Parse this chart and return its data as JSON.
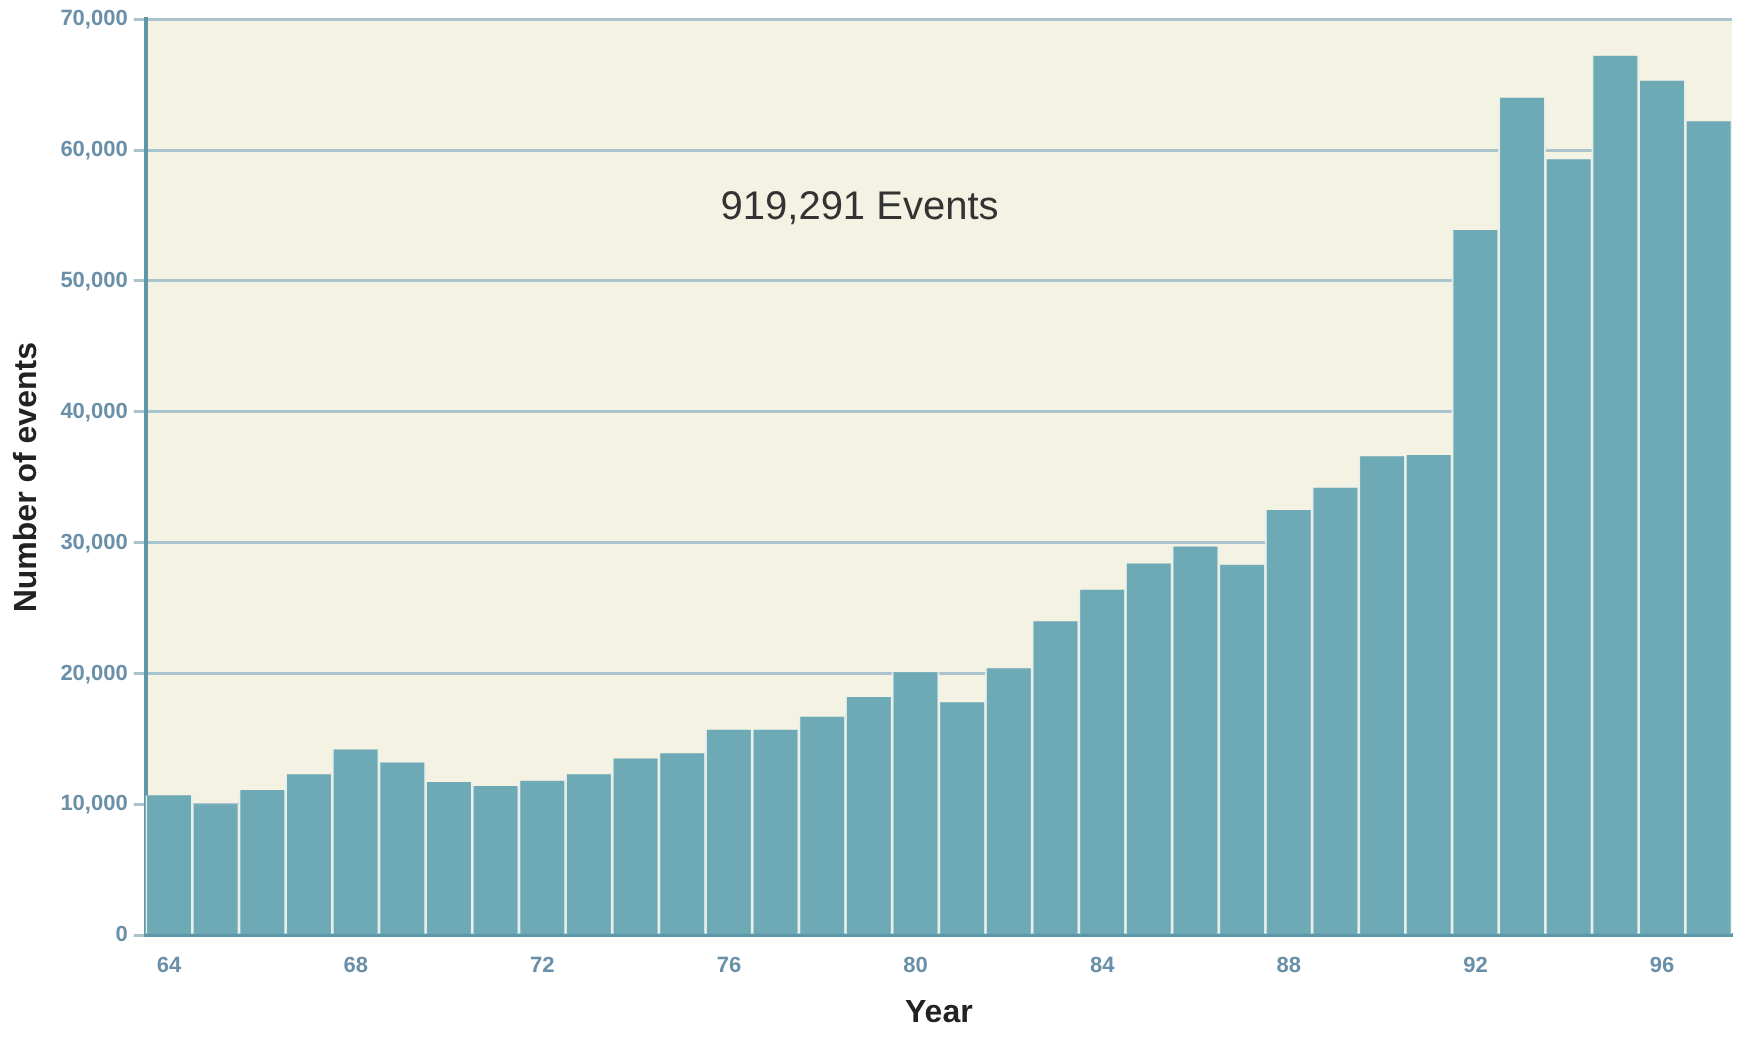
{
  "chart_data": {
    "type": "bar",
    "xlabel": "Year",
    "ylabel": "Number of events",
    "categories": [
      "64",
      null,
      null,
      null,
      "68",
      null,
      null,
      null,
      "72",
      null,
      null,
      null,
      "76",
      null,
      null,
      null,
      "80",
      null,
      null,
      null,
      "84",
      null,
      null,
      null,
      "88",
      null,
      null,
      null,
      "92",
      null,
      null,
      null,
      "96",
      null
    ],
    "values": [
      10700,
      10000,
      11100,
      12300,
      14200,
      13200,
      11700,
      11400,
      11800,
      12300,
      13500,
      13900,
      15700,
      15700,
      16700,
      18200,
      20100,
      17800,
      20400,
      24000,
      26400,
      28400,
      29700,
      28300,
      32500,
      34200,
      36600,
      36700,
      53900,
      64000,
      59300,
      67200,
      65300,
      62200
    ],
    "color": "#6ea9b6",
    "ylim": [
      0,
      70000
    ],
    "yticks": [
      0,
      {
        "value": 10000,
        "label": "10,000"
      },
      {
        "value": 20000,
        "label": "20,000"
      },
      {
        "value": 30000,
        "label": "30,000"
      },
      {
        "value": 40000,
        "label": "40,000"
      },
      {
        "value": 50000,
        "label": "50,000"
      },
      {
        "value": 60000,
        "label": "60,000"
      },
      {
        "value": 70000,
        "label": "70,000"
      }
    ],
    "grid": "y",
    "annotations": [
      "919,291 Events"
    ]
  }
}
